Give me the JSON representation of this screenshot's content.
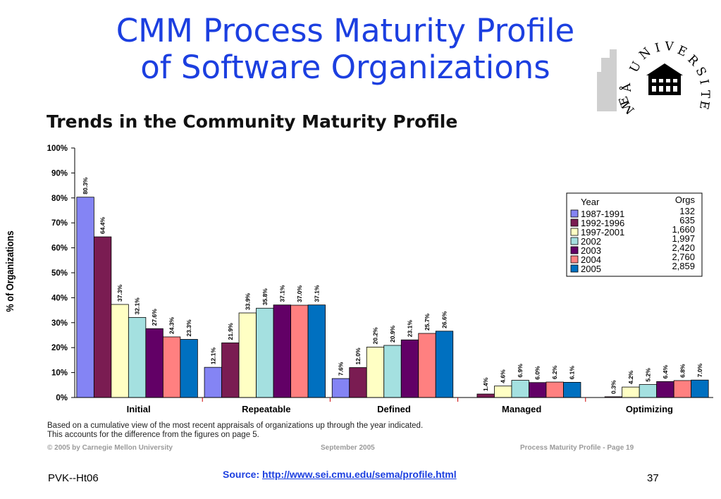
{
  "slide": {
    "title_line1": "CMM Process Maturity Profile",
    "title_line2": "of Software Organizations",
    "logo_text": "UMEÅ UNIVERSITET",
    "course": "PVK--Ht06",
    "page_number": "37",
    "source_label": "Source:",
    "source_url": "http://www.sei.cmu.edu/sema/profile.html"
  },
  "notes": {
    "line1": "Based on a cumulative view of the most recent appraisals of organizations up through the year indicated.",
    "line2": "This accounts for the difference from the figures on page 5.",
    "copyright": "© 2005  by Carnegie Mellon University",
    "date": "September 2005",
    "page_ref": "Process Maturity Profile - Page 19"
  },
  "legend": {
    "year_header": "Year",
    "orgs_header": "Orgs",
    "orgs": [
      "132",
      "635",
      "1,660",
      "1,997",
      "2,420",
      "2,760",
      "2,859"
    ]
  },
  "colors": {
    "title": "#1c3fe0",
    "series": [
      "#8484f4",
      "#7a1c52",
      "#ffffc4",
      "#a4e0e0",
      "#620066",
      "#ff8080",
      "#0070c0"
    ]
  },
  "chart_data": {
    "type": "bar",
    "title": "Trends in the Community Maturity Profile",
    "ylabel": "% of Organizations",
    "xlabel": "",
    "ylim": [
      0,
      100
    ],
    "yticks": [
      "0%",
      "10%",
      "20%",
      "30%",
      "40%",
      "50%",
      "60%",
      "70%",
      "80%",
      "90%",
      "100%"
    ],
    "categories": [
      "Initial",
      "Repeatable",
      "Defined",
      "Managed",
      "Optimizing"
    ],
    "legend_position": "right",
    "grid": false,
    "series": [
      {
        "name": "1987-1991",
        "values": [
          80.3,
          12.1,
          7.6,
          0,
          0
        ],
        "labels": [
          "80.3%",
          "12.1%",
          "7.6%",
          "",
          ""
        ]
      },
      {
        "name": "1992-1996",
        "values": [
          64.4,
          21.9,
          12.0,
          1.4,
          0.3
        ],
        "labels": [
          "64.4%",
          "21.9%",
          "12.0%",
          "1.4%",
          "0.3%"
        ]
      },
      {
        "name": "1997-2001",
        "values": [
          37.3,
          33.9,
          20.2,
          4.6,
          4.2
        ],
        "labels": [
          "37.3%",
          "33.9%",
          "20.2%",
          "4.6%",
          "4.2%"
        ]
      },
      {
        "name": "2002",
        "values": [
          32.1,
          35.8,
          20.9,
          6.9,
          5.2
        ],
        "labels": [
          "32.1%",
          "35.8%",
          "20.9%",
          "6.9%",
          "5.2%"
        ]
      },
      {
        "name": "2003",
        "values": [
          27.6,
          37.1,
          23.1,
          6.0,
          6.4
        ],
        "labels": [
          "27.6%",
          "37.1%",
          "23.1%",
          "6.0%",
          "6.4%"
        ]
      },
      {
        "name": "2004",
        "values": [
          24.3,
          37.0,
          25.7,
          6.2,
          6.8
        ],
        "labels": [
          "24.3%",
          "37.0%",
          "25.7%",
          "6.2%",
          "6.8%"
        ]
      },
      {
        "name": "2005",
        "values": [
          23.3,
          37.1,
          26.6,
          6.1,
          7.0
        ],
        "labels": [
          "23.3%",
          "37.1%",
          "26.6%",
          "6.1%",
          "7.0%"
        ]
      }
    ]
  }
}
